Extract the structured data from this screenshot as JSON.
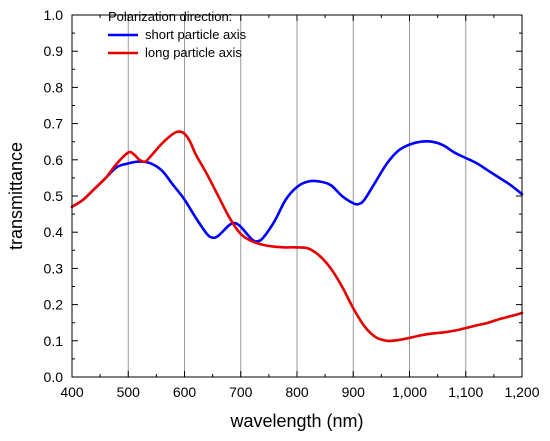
{
  "chart_data": {
    "type": "line",
    "title": "",
    "xlabel": "wavelength (nm)",
    "ylabel": "transmittance",
    "xlim": [
      400,
      1200
    ],
    "ylim": [
      0.0,
      1.0
    ],
    "x_ticks": [
      400,
      500,
      600,
      700,
      800,
      900,
      1000,
      1100,
      1200
    ],
    "x_tick_labels": [
      "400",
      "500",
      "600",
      "700",
      "800",
      "900",
      "1,000",
      "1,100",
      "1,200"
    ],
    "y_ticks": [
      0.0,
      0.1,
      0.2,
      0.3,
      0.4,
      0.5,
      0.6,
      0.7,
      0.8,
      0.9,
      1.0
    ],
    "y_tick_labels": [
      "0.0",
      "0.1",
      "0.2",
      "0.3",
      "0.4",
      "0.5",
      "0.6",
      "0.7",
      "0.8",
      "0.9",
      "1.0"
    ],
    "grid": "vertical",
    "legend": {
      "title": "Polarization direction:",
      "placement": "top-left"
    },
    "series": [
      {
        "name": "short particle axis",
        "color": "#0000ff",
        "x": [
          400,
          420,
          440,
          460,
          480,
          500,
          520,
          540,
          560,
          580,
          600,
          620,
          640,
          650,
          660,
          680,
          690,
          700,
          720,
          730,
          740,
          760,
          780,
          800,
          820,
          840,
          860,
          880,
          900,
          910,
          920,
          940,
          960,
          980,
          1000,
          1020,
          1040,
          1060,
          1080,
          1100,
          1120,
          1140,
          1160,
          1180,
          1200
        ],
        "y": [
          0.47,
          0.49,
          0.52,
          0.55,
          0.58,
          0.59,
          0.595,
          0.59,
          0.57,
          0.53,
          0.49,
          0.44,
          0.395,
          0.385,
          0.39,
          0.42,
          0.425,
          0.415,
          0.38,
          0.375,
          0.385,
          0.43,
          0.49,
          0.525,
          0.54,
          0.54,
          0.53,
          0.5,
          0.48,
          0.478,
          0.49,
          0.54,
          0.59,
          0.625,
          0.642,
          0.65,
          0.65,
          0.64,
          0.62,
          0.605,
          0.59,
          0.57,
          0.55,
          0.53,
          0.505
        ]
      },
      {
        "name": "long particle axis",
        "color": "#e60000",
        "x": [
          400,
          420,
          440,
          460,
          480,
          500,
          510,
          520,
          530,
          540,
          560,
          580,
          590,
          600,
          610,
          620,
          640,
          660,
          680,
          700,
          720,
          740,
          760,
          780,
          800,
          820,
          840,
          860,
          880,
          900,
          920,
          940,
          960,
          980,
          1000,
          1020,
          1040,
          1060,
          1080,
          1100,
          1120,
          1140,
          1160,
          1180,
          1200
        ],
        "y": [
          0.47,
          0.49,
          0.52,
          0.55,
          0.59,
          0.62,
          0.615,
          0.6,
          0.595,
          0.61,
          0.645,
          0.672,
          0.678,
          0.672,
          0.65,
          0.615,
          0.56,
          0.5,
          0.44,
          0.395,
          0.375,
          0.365,
          0.36,
          0.358,
          0.358,
          0.355,
          0.335,
          0.3,
          0.25,
          0.19,
          0.14,
          0.11,
          0.1,
          0.102,
          0.108,
          0.115,
          0.12,
          0.123,
          0.128,
          0.135,
          0.143,
          0.15,
          0.16,
          0.168,
          0.177
        ]
      }
    ]
  }
}
